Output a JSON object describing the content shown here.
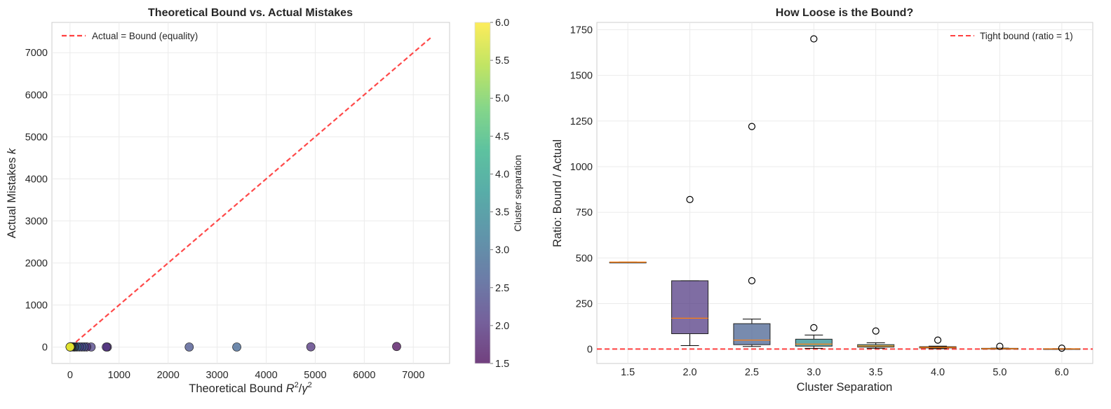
{
  "chart_data": [
    {
      "type": "scatter",
      "title": "Theoretical Bound vs. Actual Mistakes",
      "xlabel": "Theoretical Bound R²/γ²",
      "ylabel": "Actual Mistakes k",
      "xlim": [
        -370,
        7740
      ],
      "ylim": [
        -390,
        7720
      ],
      "xticks": [
        0,
        1000,
        2000,
        3000,
        4000,
        5000,
        6000,
        7000
      ],
      "yticks": [
        0,
        1000,
        2000,
        3000,
        4000,
        5000,
        6000,
        7000
      ],
      "grid": true,
      "legend": {
        "position": "top-left",
        "entries": [
          "Actual = Bound (equality)"
        ]
      },
      "reference_line": {
        "name": "Actual = Bound (equality)",
        "from": [
          0,
          0
        ],
        "to": [
          7350,
          7350
        ],
        "color": "#ff4040",
        "style": "dashed"
      },
      "colorbar": {
        "label": "Cluster separation",
        "range": [
          1.5,
          6.0
        ],
        "ticks": [
          "1.5",
          "2.0",
          "2.5",
          "3.0",
          "3.5",
          "4.0",
          "4.5",
          "5.0",
          "5.5",
          "6.0"
        ],
        "colormap": "viridis"
      },
      "points": [
        {
          "x": 6660,
          "y": 14,
          "c": 1.5
        },
        {
          "x": 4910,
          "y": 6,
          "c": 2.0
        },
        {
          "x": 3400,
          "y": 2,
          "c": 2.8
        },
        {
          "x": 2430,
          "y": 2,
          "c": 2.5
        },
        {
          "x": 760,
          "y": 2,
          "c": 2.0
        },
        {
          "x": 740,
          "y": 2,
          "c": 2.0
        },
        {
          "x": 430,
          "y": 2,
          "c": 2.2
        },
        {
          "x": 340,
          "y": 3,
          "c": 2.0
        },
        {
          "x": 290,
          "y": 3,
          "c": 2.5
        },
        {
          "x": 240,
          "y": 3,
          "c": 2.5
        },
        {
          "x": 190,
          "y": 3,
          "c": 2.3
        },
        {
          "x": 140,
          "y": 4,
          "c": 3.0
        },
        {
          "x": 100,
          "y": 4,
          "c": 2.5
        },
        {
          "x": 80,
          "y": 4,
          "c": 3.0
        },
        {
          "x": 60,
          "y": 5,
          "c": 3.0
        },
        {
          "x": 40,
          "y": 5,
          "c": 3.5
        },
        {
          "x": 30,
          "y": 6,
          "c": 3.0
        },
        {
          "x": 20,
          "y": 6,
          "c": 4.0
        },
        {
          "x": 12,
          "y": 6,
          "c": 5.0
        },
        {
          "x": 8,
          "y": 6,
          "c": 4.0
        },
        {
          "x": 5,
          "y": 5,
          "c": 6.0
        },
        {
          "x": 3,
          "y": 4,
          "c": 6.0
        },
        {
          "x": 2,
          "y": 4,
          "c": 5.0
        },
        {
          "x": 1,
          "y": 3,
          "c": 6.0
        }
      ]
    },
    {
      "type": "box",
      "title": "How Loose is the Bound?",
      "xlabel": "Cluster Separation",
      "ylabel": "Ratio: Bound / Actual",
      "ylim": [
        -78,
        1790
      ],
      "yticks": [
        0,
        250,
        500,
        750,
        1000,
        1250,
        1500,
        1750
      ],
      "grid": true,
      "legend": {
        "position": "top-right",
        "entries": [
          "Tight bound (ratio = 1)"
        ]
      },
      "reference_line": {
        "name": "Tight bound (ratio = 1)",
        "y": 1,
        "color": "#ff4040",
        "style": "dashed"
      },
      "categories": [
        "1.5",
        "2.0",
        "2.5",
        "3.0",
        "3.5",
        "4.0",
        "5.0",
        "6.0"
      ],
      "boxes": [
        {
          "whislo": 477,
          "q1": 477,
          "med": 477,
          "q3": 477,
          "whishi": 477,
          "fliers": [],
          "color": "#46266e"
        },
        {
          "whislo": 20,
          "q1": 85,
          "med": 170,
          "q3": 375,
          "whishi": 375,
          "fliers": [
            820
          ],
          "color": "#482f7c"
        },
        {
          "whislo": 15,
          "q1": 25,
          "med": 50,
          "q3": 140,
          "whishi": 165,
          "fliers": [
            375,
            1220
          ],
          "color": "#3e5a8b"
        },
        {
          "whislo": 5,
          "q1": 17,
          "med": 28,
          "q3": 55,
          "whishi": 78,
          "fliers": [
            118,
            1700
          ],
          "color": "#21868a"
        },
        {
          "whislo": 5,
          "q1": 12,
          "med": 18,
          "q3": 25,
          "whishi": 35,
          "fliers": [
            100
          ],
          "color": "#2ca87f"
        },
        {
          "whislo": 3,
          "q1": 7,
          "med": 10,
          "q3": 14,
          "whishi": 17,
          "fliers": [
            50
          ],
          "color": "#38b977"
        },
        {
          "whislo": 1,
          "q1": 2,
          "med": 3,
          "q3": 5,
          "whishi": 6,
          "fliers": [
            16
          ],
          "color": "#7ad151"
        },
        {
          "whislo": 1,
          "q1": 1,
          "med": 2,
          "q3": 3,
          "whishi": 3,
          "fliers": [
            6
          ],
          "color": "#dde318"
        }
      ],
      "median_color": "#ff7f0e"
    }
  ]
}
